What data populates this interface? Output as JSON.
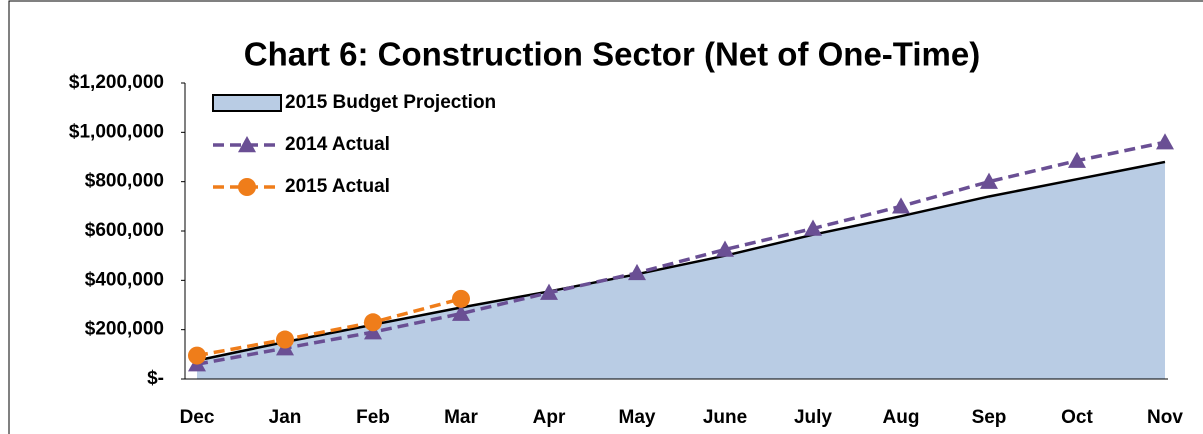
{
  "chart_data": {
    "type": "line",
    "title": "Chart 6: Construction Sector (Net of One-Time)",
    "categories": [
      "Dec",
      "Jan",
      "Feb",
      "Mar",
      "Apr",
      "May",
      "June",
      "July",
      "Aug",
      "Sep",
      "Oct",
      "Nov"
    ],
    "series": [
      {
        "name": "2015 Budget Projection",
        "kind": "area",
        "color": "#b9cce4",
        "values": [
          75000,
          150000,
          220000,
          290000,
          355000,
          425000,
          500000,
          585000,
          660000,
          740000,
          810000,
          880000
        ]
      },
      {
        "name": "2014 Actual",
        "kind": "line",
        "marker": "triangle",
        "color": "#6a4f94",
        "values": [
          60000,
          125000,
          190000,
          265000,
          350000,
          430000,
          525000,
          610000,
          700000,
          800000,
          885000,
          960000
        ]
      },
      {
        "name": "2015 Actual",
        "kind": "line",
        "marker": "circle",
        "color": "#ef7d1a",
        "values": [
          95000,
          160000,
          230000,
          325000,
          null,
          null,
          null,
          null,
          null,
          null,
          null,
          null
        ]
      }
    ],
    "ylim": [
      0,
      1200000
    ],
    "yticks": [
      {
        "value": 0,
        "label": "$-"
      },
      {
        "value": 200000,
        "label": "$200,000"
      },
      {
        "value": 400000,
        "label": "$400,000"
      },
      {
        "value": 600000,
        "label": "$600,000"
      },
      {
        "value": 800000,
        "label": "$800,000"
      },
      {
        "value": 1000000,
        "label": "$1,000,000"
      },
      {
        "value": 1200000,
        "label": "$1,200,000"
      }
    ],
    "legend": "top-left"
  }
}
